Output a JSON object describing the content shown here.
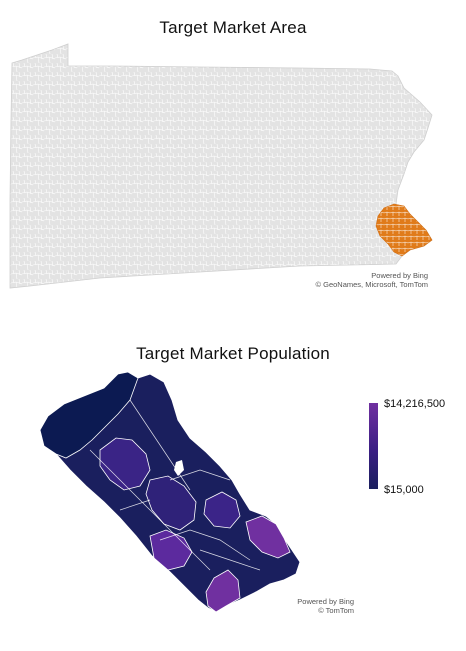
{
  "top_map": {
    "title": "Target Market Area",
    "attribution_line1": "Powered by Bing",
    "attribution_line2": "© GeoNames, Microsoft, TomTom",
    "base_color": "#e3e3e3",
    "highlight_color": "#e07b1a"
  },
  "bottom_map": {
    "title": "Target Market Population",
    "attribution_line1": "Powered by Bing",
    "attribution_line2": "© TomTom",
    "legend": {
      "max_label": "$14,216,500",
      "min_label": "$15,000",
      "max_color": "#7030A0",
      "min_color": "#1a1f5e"
    }
  }
}
